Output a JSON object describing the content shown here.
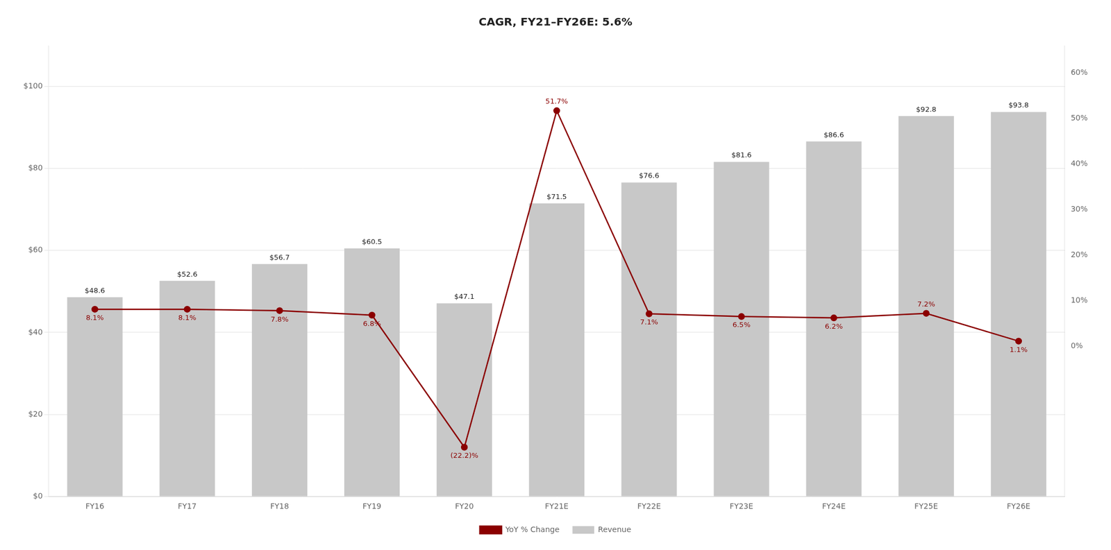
{
  "chart_data": {
    "type": "bar",
    "title": "CAGR, FY21–FY26E: 5.6%",
    "categories": [
      "FY16",
      "FY17",
      "FY18",
      "FY19",
      "FY20",
      "FY21E",
      "FY22E",
      "FY23E",
      "FY24E",
      "FY25E",
      "FY26E"
    ],
    "series": [
      {
        "name": "Revenue",
        "type": "bar",
        "color": "#c8c8c8",
        "values": [
          48.6,
          52.6,
          56.7,
          60.5,
          47.1,
          71.5,
          76.6,
          81.6,
          86.6,
          92.8,
          93.8
        ],
        "value_labels": [
          "$48.6",
          "$52.6",
          "$56.7",
          "$60.5",
          "$47.1",
          "$71.5",
          "$76.6",
          "$81.6",
          "$86.6",
          "$92.8",
          "$93.8"
        ]
      },
      {
        "name": "YoY % Change",
        "type": "line",
        "axis": "y2",
        "color": "#8b0000",
        "marker": "circle",
        "values": [
          8.1,
          8.1,
          7.8,
          6.8,
          -22.2,
          51.7,
          7.1,
          6.5,
          6.2,
          7.2,
          1.1
        ],
        "value_labels": [
          "8.1%",
          "8.1%",
          "7.8%",
          "6.8%",
          "(22.2)%",
          "51.7%",
          "7.1%",
          "6.5%",
          "6.2%",
          "7.2%",
          "1.1%"
        ]
      }
    ],
    "ylim": [
      0,
      110
    ],
    "yticks": [
      {
        "value": 0,
        "label": "$0"
      },
      {
        "value": 20,
        "label": "$20"
      },
      {
        "value": 40,
        "label": "$40"
      },
      {
        "value": 60,
        "label": "$60"
      },
      {
        "value": 80,
        "label": "$80"
      },
      {
        "value": 100,
        "label": "$100"
      }
    ],
    "y2lim": [
      -33,
      66
    ],
    "y2ticks": [
      {
        "value": 0,
        "label": "0%"
      },
      {
        "value": 10,
        "label": "10%"
      },
      {
        "value": 20,
        "label": "20%"
      },
      {
        "value": 30,
        "label": "30%"
      },
      {
        "value": 40,
        "label": "40%"
      },
      {
        "value": 50,
        "label": "50%"
      },
      {
        "value": 60,
        "label": "60%"
      }
    ],
    "grid": true,
    "legend": "bottom",
    "data_labels": true
  }
}
